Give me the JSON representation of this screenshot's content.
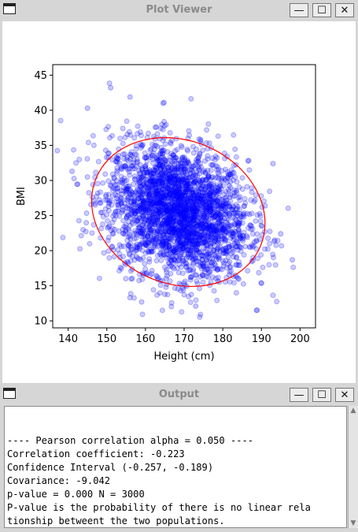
{
  "plot_window": {
    "title": "Plot Viewer"
  },
  "output_window": {
    "title": "Output",
    "lines": [
      "",
      "---- Pearson correlation alpha = 0.050 ----",
      "Correlation coefficient: -0.223",
      "Confidence Interval (-0.257, -0.189)",
      "Covariance: -9.042",
      "p-value = 0.000 N = 3000",
      "P-value is the probability of there is no linear rela",
      "tionship betweent the two populations."
    ]
  },
  "buttons": {
    "minimize": "—",
    "maximize": "☐",
    "close": "✕"
  },
  "chart_data": {
    "type": "scatter",
    "title": "",
    "xlabel": "Height (cm)",
    "ylabel": "BMI",
    "xlim": [
      136,
      204
    ],
    "ylim": [
      9,
      46.5
    ],
    "xticks": [
      140,
      150,
      160,
      170,
      180,
      190,
      200
    ],
    "yticks": [
      10,
      15,
      20,
      25,
      30,
      35,
      40,
      45
    ],
    "point_color": "#0000ff",
    "ellipse_color": "#ff0000",
    "n_points": 3000,
    "center": {
      "height": 168.5,
      "bmi": 25.5
    },
    "sample_outliers": [
      {
        "height": 151,
        "bmi": 43.2
      },
      {
        "height": 145,
        "bmi": 40.3
      },
      {
        "height": 156,
        "bmi": 41.9
      },
      {
        "height": 141,
        "bmi": 31.3
      },
      {
        "height": 193,
        "bmi": 32.4
      },
      {
        "height": 198,
        "bmi": 18.7
      },
      {
        "height": 173,
        "bmi": 12.1
      },
      {
        "height": 156,
        "bmi": 13.3
      },
      {
        "height": 195,
        "bmi": 22.4
      }
    ]
  }
}
